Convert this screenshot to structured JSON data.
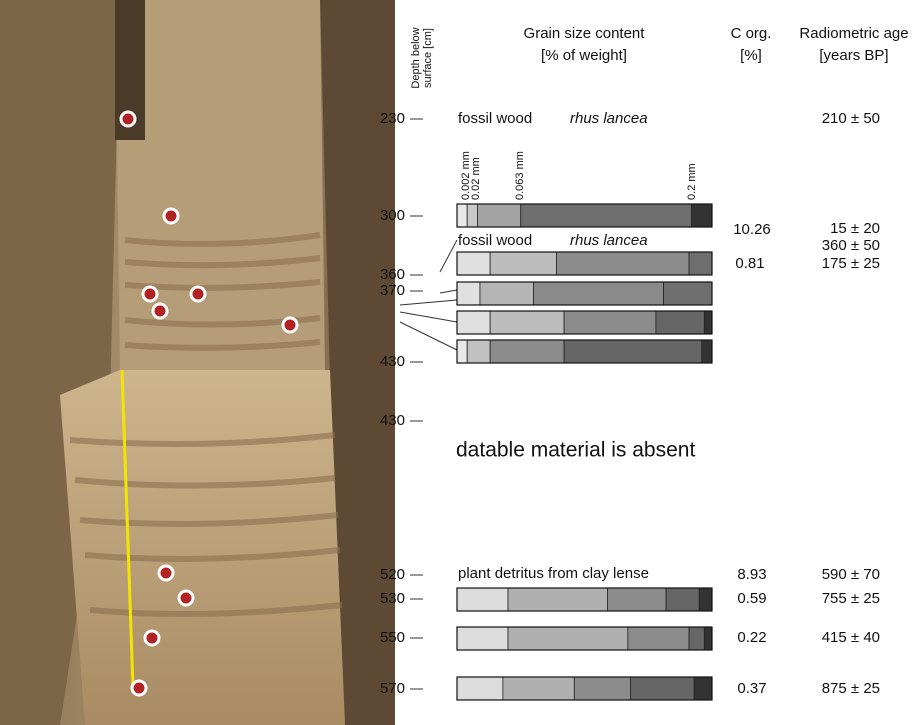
{
  "header": {
    "depth": [
      "Depth below",
      "surface [cm]"
    ],
    "grain": [
      "Grain size content",
      "[% of weight]"
    ],
    "corg": [
      "C org.",
      "[%]"
    ],
    "age": [
      "Radiometric age",
      "[years BP]"
    ]
  },
  "depths": [
    "230",
    "300",
    "360",
    "370",
    "430",
    "430",
    "520",
    "530",
    "550",
    "570"
  ],
  "grain_scale": [
    "0.002 mm",
    "0.02 mm",
    "0.063 mm",
    "0.2 mm"
  ],
  "annotations": {
    "fossil_wood_1": "fossil wood",
    "rhus_1": "rhus lancea",
    "age_1": "210 ± 50",
    "corg_2": "10.26",
    "age_2": "15 ± 20",
    "fossil_wood_2": "fossil wood",
    "rhus_2": "rhus lancea",
    "age_3": "360 ± 50",
    "corg_3": "0.81",
    "age_4": "175 ± 25",
    "absent": "datable material is absent",
    "plant": "plant detritus from clay lense",
    "corg_5": "8.93",
    "age_5": "590 ± 70",
    "corg_6": "0.59",
    "age_6": "755 ± 25",
    "corg_7": "0.22",
    "age_7": "415 ± 40",
    "corg_8": "0.37",
    "age_8": "875 ± 25"
  },
  "bars": [
    {
      "segments": [
        {
          "value": 4,
          "color": "#e8e8e8"
        },
        {
          "value": 4,
          "color": "#c9c9c9"
        },
        {
          "value": 17,
          "color": "#a3a3a3"
        },
        {
          "value": 67,
          "color": "#6e6e6e"
        },
        {
          "value": 8,
          "color": "#333333"
        }
      ]
    },
    {
      "segments": [
        {
          "value": 13,
          "color": "#e0e0e0"
        },
        {
          "value": 26,
          "color": "#bcbcbc"
        },
        {
          "value": 52,
          "color": "#8c8c8c"
        },
        {
          "value": 9,
          "color": "#6e6e6e"
        }
      ]
    },
    {
      "segments": [
        {
          "value": 9,
          "color": "#e0e0e0"
        },
        {
          "value": 21,
          "color": "#b5b5b5"
        },
        {
          "value": 51,
          "color": "#8a8a8a"
        },
        {
          "value": 19,
          "color": "#6e6e6e"
        }
      ]
    },
    {
      "segments": [
        {
          "value": 13,
          "color": "#e0e0e0"
        },
        {
          "value": 29,
          "color": "#bcbcbc"
        },
        {
          "value": 36,
          "color": "#8c8c8c"
        },
        {
          "value": 19,
          "color": "#666666"
        },
        {
          "value": 3,
          "color": "#333333"
        }
      ]
    },
    {
      "segments": [
        {
          "value": 4,
          "color": "#e8e8e8"
        },
        {
          "value": 9,
          "color": "#c0c0c0"
        },
        {
          "value": 29,
          "color": "#8c8c8c"
        },
        {
          "value": 54,
          "color": "#666666"
        },
        {
          "value": 4,
          "color": "#333333"
        }
      ]
    },
    {
      "segments": [
        {
          "value": 20,
          "color": "#dcdcdc"
        },
        {
          "value": 39,
          "color": "#b0b0b0"
        },
        {
          "value": 23,
          "color": "#8c8c8c"
        },
        {
          "value": 13,
          "color": "#666666"
        },
        {
          "value": 5,
          "color": "#333333"
        }
      ]
    },
    {
      "segments": [
        {
          "value": 20,
          "color": "#dcdcdc"
        },
        {
          "value": 47,
          "color": "#b0b0b0"
        },
        {
          "value": 24,
          "color": "#8c8c8c"
        },
        {
          "value": 6,
          "color": "#666666"
        },
        {
          "value": 3,
          "color": "#333333"
        }
      ]
    },
    {
      "segments": [
        {
          "value": 18,
          "color": "#dcdcdc"
        },
        {
          "value": 28,
          "color": "#b0b0b0"
        },
        {
          "value": 22,
          "color": "#8c8c8c"
        },
        {
          "value": 25,
          "color": "#666666"
        },
        {
          "value": 7,
          "color": "#333333"
        }
      ]
    }
  ]
}
